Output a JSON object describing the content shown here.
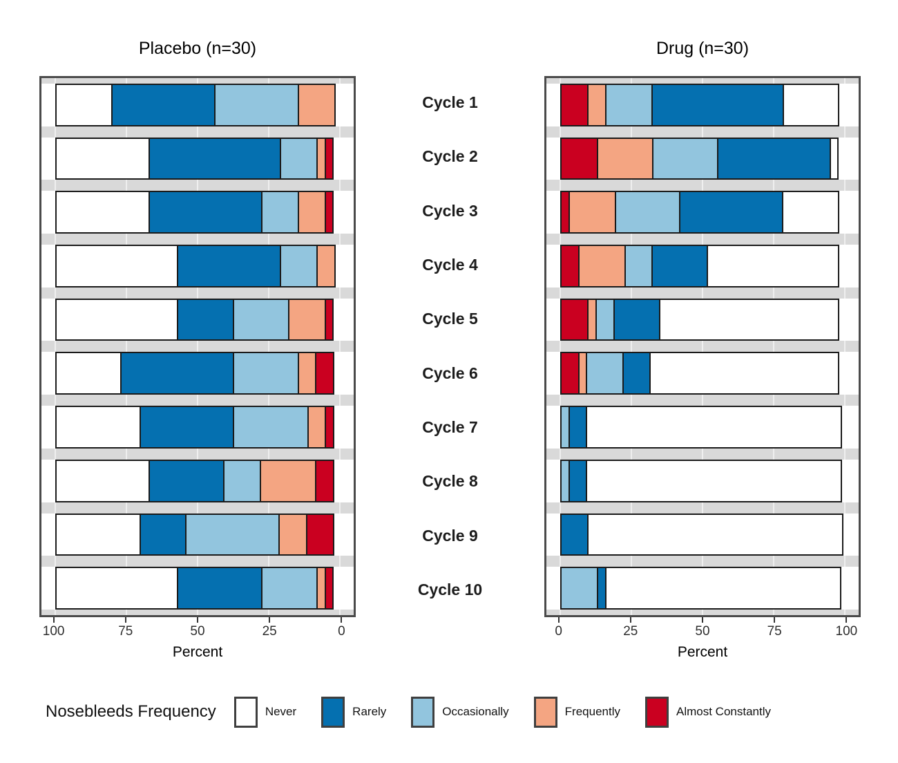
{
  "chart_data": {
    "type": "bar",
    "variant": "horizontal-diverging-stacked-100pct",
    "unit": "percent",
    "xlim": [
      0,
      100
    ],
    "categories": [
      "Cycle 1",
      "Cycle 2",
      "Cycle 3",
      "Cycle 4",
      "Cycle 5",
      "Cycle 6",
      "Cycle 7",
      "Cycle 8",
      "Cycle 9",
      "Cycle 10"
    ],
    "legend": {
      "title": "Nosebleeds Frequency",
      "position": "bottom",
      "entries": [
        {
          "label": "Never",
          "color": "#ffffff"
        },
        {
          "label": "Rarely",
          "color": "#0570b0"
        },
        {
          "label": "Occasionally",
          "color": "#92c5de"
        },
        {
          "label": "Frequently",
          "color": "#f4a582"
        },
        {
          "label": "Almost Constantly",
          "color": "#ca0020"
        }
      ]
    },
    "panels": [
      {
        "title": "Placebo (n=30)",
        "xlabel": "Percent",
        "axis_reversed": true,
        "ticks": [
          100,
          75,
          50,
          25,
          0
        ],
        "series": [
          {
            "name": "Never",
            "values": [
              20,
              33.3,
              33.3,
              43.3,
              43.3,
              23.3,
              30,
              33.3,
              30,
              43.3
            ]
          },
          {
            "name": "Rarely",
            "values": [
              36.7,
              46.7,
              40,
              36.7,
              20,
              40,
              33.3,
              26.7,
              16.7,
              30
            ]
          },
          {
            "name": "Occasionally",
            "values": [
              30,
              13.3,
              13.3,
              13.3,
              20,
              23.3,
              26.7,
              13.3,
              33.3,
              20
            ]
          },
          {
            "name": "Frequently",
            "values": [
              13.3,
              3.3,
              10,
              6.7,
              13.3,
              6.7,
              6.7,
              20,
              10,
              3.3
            ]
          },
          {
            "name": "Almost Constantly",
            "values": [
              0,
              3.3,
              3.3,
              0,
              3.3,
              6.7,
              3.3,
              6.7,
              10,
              3.3
            ]
          }
        ]
      },
      {
        "title": "Drug (n=30)",
        "xlabel": "Percent",
        "axis_reversed": false,
        "ticks": [
          0,
          25,
          50,
          75,
          100
        ],
        "series": [
          {
            "name": "Never",
            "values": [
              20,
              3.3,
              20,
              46.7,
              63.3,
              66.7,
              90,
              90,
              90,
              83.3
            ]
          },
          {
            "name": "Rarely",
            "values": [
              46.7,
              40,
              36.7,
              20,
              16.7,
              10,
              6.7,
              6.7,
              10,
              3.3
            ]
          },
          {
            "name": "Occasionally",
            "values": [
              16.7,
              23.3,
              23.3,
              10,
              6.7,
              13.3,
              3.3,
              3.3,
              0,
              13.3
            ]
          },
          {
            "name": "Frequently",
            "values": [
              6.7,
              20,
              16.7,
              16.7,
              3.3,
              3.3,
              0,
              0,
              0,
              0
            ]
          },
          {
            "name": "Almost Constantly",
            "values": [
              10,
              13.3,
              3.3,
              6.7,
              10,
              6.7,
              0,
              0,
              0,
              0
            ]
          }
        ]
      }
    ]
  }
}
